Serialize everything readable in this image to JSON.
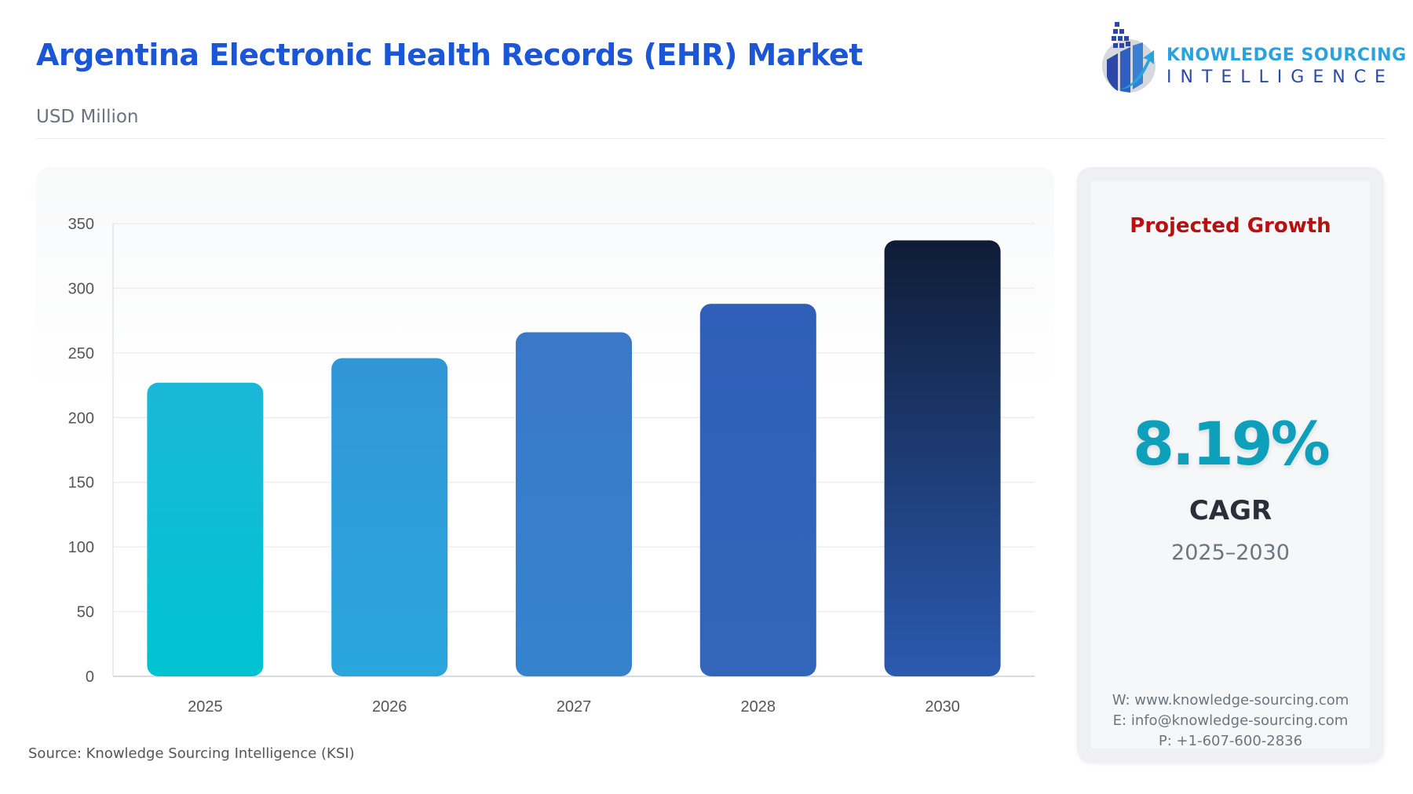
{
  "header": {
    "title": "Argentina Electronic Health Records (EHR) Market",
    "subtitle": "USD Million"
  },
  "logo": {
    "line1": "KNOWLEDGE SOURCING",
    "line2": "INTELLIGENCE"
  },
  "chart_data": {
    "type": "bar",
    "categories": [
      "2025",
      "2026",
      "2027",
      "2028",
      "2030"
    ],
    "values": [
      227,
      246,
      266,
      288,
      337
    ],
    "ylabel": "USD Million",
    "ylim": [
      0,
      350
    ],
    "yticks": [
      "0",
      "50",
      "100",
      "150",
      "200",
      "250",
      "300",
      "350"
    ],
    "grid": true,
    "colors": [
      "#00c3d2",
      "#2aa6dc",
      "#3583cc",
      "#3366bb",
      "#1a2d56"
    ]
  },
  "footer": {
    "source": "Source: Knowledge Sourcing Intelligence (KSI)"
  },
  "side": {
    "heading": "Projected Growth",
    "cagr_value": "8.19%",
    "cagr_label": "CAGR",
    "period": "2025–2030",
    "website": "W: www.knowledge-sourcing.com",
    "email": "E: info@knowledge-sourcing.com",
    "phone": "P: +1-607-600-2836"
  }
}
